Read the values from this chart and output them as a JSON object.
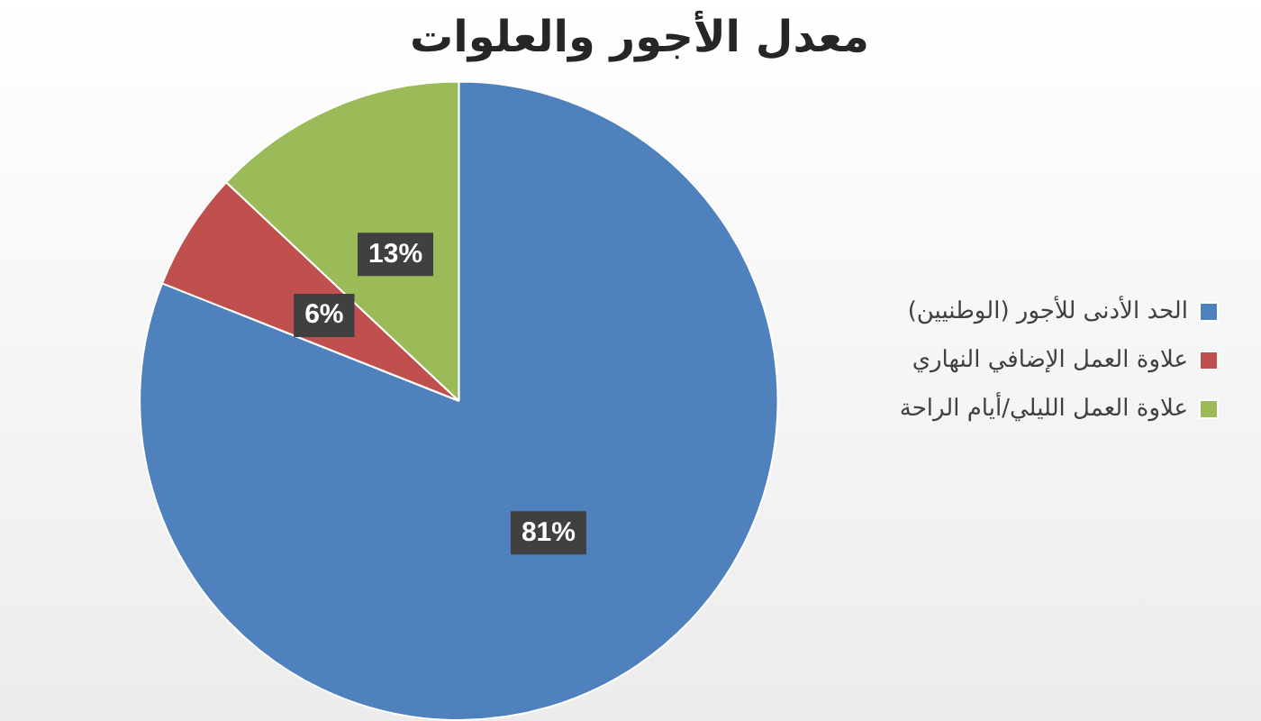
{
  "chart_data": {
    "type": "pie",
    "title": "معدل الأجور والعلوات",
    "categories": [
      "الحد الأدنى للأجور (الوطنيين)",
      "علاوة العمل الإضافي النهاري",
      "علاوة العمل الليلي/أيام الراحة"
    ],
    "values": [
      81,
      6,
      13
    ],
    "colors": [
      "#4f81bd",
      "#c0504d",
      "#9bbb59"
    ],
    "value_labels": [
      "81%",
      "6%",
      "13%"
    ],
    "legend": "right"
  }
}
